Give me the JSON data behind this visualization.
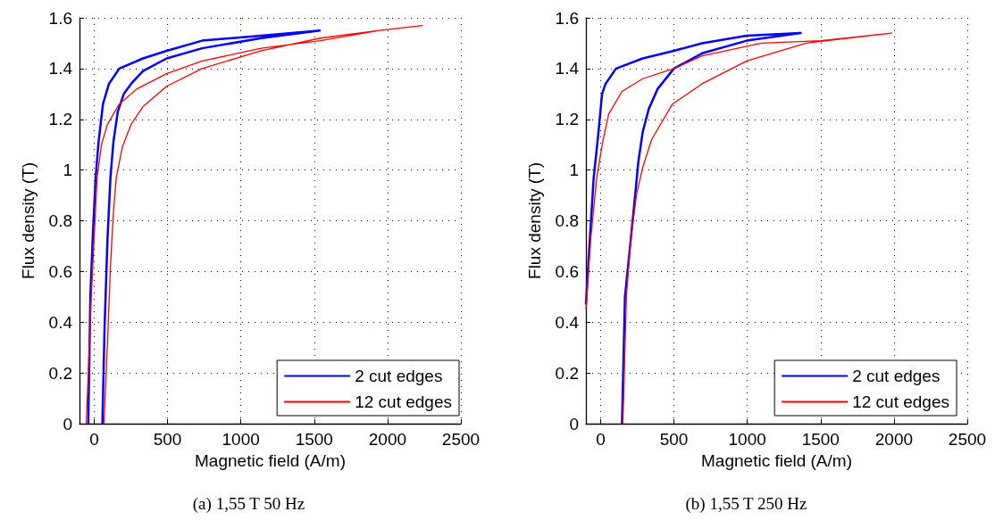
{
  "chart_data": [
    {
      "type": "line",
      "title": "(a) 1,55 T 50 Hz",
      "xlabel": "Magnetic field (A/m)",
      "ylabel": "Flux density (T)",
      "xlim": [
        -100,
        2500
      ],
      "xticks": [
        0,
        500,
        1000,
        1500,
        2000,
        2500
      ],
      "ylim": [
        0,
        1.6
      ],
      "yticks": [
        0,
        0.2,
        0.4,
        0.6,
        0.8,
        1,
        1.2,
        1.4,
        1.6
      ],
      "grid": true,
      "legend": "bottom right",
      "marker": "none",
      "line_style": "solid",
      "series": [
        {
          "name": "2 cut edges",
          "color": "#0000ff",
          "x": [
            56,
            71,
            91,
            111,
            131,
            161,
            202,
            252,
            333,
            494,
            736,
            1139,
            1538,
            1139,
            736,
            494,
            333,
            171,
            101,
            60,
            30,
            10,
            -10,
            -26,
            -40
          ],
          "values": [
            0,
            0.38,
            0.73,
            0.97,
            1.11,
            1.23,
            1.3,
            1.34,
            1.39,
            1.44,
            1.48,
            1.52,
            1.55,
            1.53,
            1.51,
            1.47,
            1.44,
            1.4,
            1.34,
            1.26,
            1.11,
            0.97,
            0.73,
            0.5,
            0
          ]
        },
        {
          "name": "12 cut edges",
          "color": "#ff0000",
          "x": [
            67,
            91,
            111,
            131,
            151,
            192,
            252,
            333,
            494,
            736,
            1139,
            1542,
            1945,
            2238,
            1945,
            1542,
            1139,
            736,
            494,
            292,
            171,
            91,
            50,
            20,
            0,
            -20,
            -54
          ],
          "values": [
            0,
            0.32,
            0.62,
            0.83,
            0.97,
            1.09,
            1.18,
            1.25,
            1.33,
            1.4,
            1.47,
            1.52,
            1.55,
            1.57,
            1.55,
            1.51,
            1.48,
            1.43,
            1.38,
            1.32,
            1.26,
            1.18,
            1.1,
            0.97,
            0.73,
            0.5,
            0
          ]
        }
      ]
    },
    {
      "type": "line",
      "title": "(b) 1,55 T 250 Hz",
      "xlabel": "Magnetic field (A/m)",
      "ylabel": "Flux density (T)",
      "xlim": [
        -100,
        2500
      ],
      "xticks": [
        0,
        500,
        1000,
        1500,
        2000,
        2500
      ],
      "ylim": [
        0,
        1.6
      ],
      "yticks": [
        0,
        0.2,
        0.4,
        0.6,
        0.8,
        1,
        1.2,
        1.4,
        1.6
      ],
      "grid": true,
      "legend": "bottom right",
      "marker": "none",
      "line_style": "solid",
      "series": [
        {
          "name": "2 cut edges",
          "color": "#0000ff",
          "x": [
            146,
            166,
            196,
            227,
            257,
            287,
            328,
            389,
            500,
            692,
            996,
            1364,
            996,
            692,
            500,
            287,
            105,
            34,
            10,
            -16,
            -47,
            -73,
            -100
          ],
          "values": [
            0,
            0.5,
            0.67,
            0.85,
            1.03,
            1.15,
            1.24,
            1.32,
            1.4,
            1.46,
            1.51,
            1.54,
            1.53,
            1.5,
            1.47,
            1.44,
            1.4,
            1.34,
            1.3,
            1.14,
            0.97,
            0.73,
            0.47
          ]
        },
        {
          "name": "12 cut edges",
          "color": "#ff0000",
          "x": [
            152,
            176,
            206,
            247,
            287,
            348,
            490,
            692,
            996,
            1401,
            1984,
            1502,
            1097,
            692,
            500,
            287,
            146,
            55,
            14,
            -26,
            -67,
            -100
          ],
          "values": [
            0,
            0.5,
            0.73,
            0.91,
            1.01,
            1.12,
            1.26,
            1.34,
            1.43,
            1.5,
            1.54,
            1.51,
            1.5,
            1.45,
            1.4,
            1.36,
            1.31,
            1.22,
            1.11,
            0.97,
            0.73,
            0.45
          ]
        }
      ]
    }
  ]
}
